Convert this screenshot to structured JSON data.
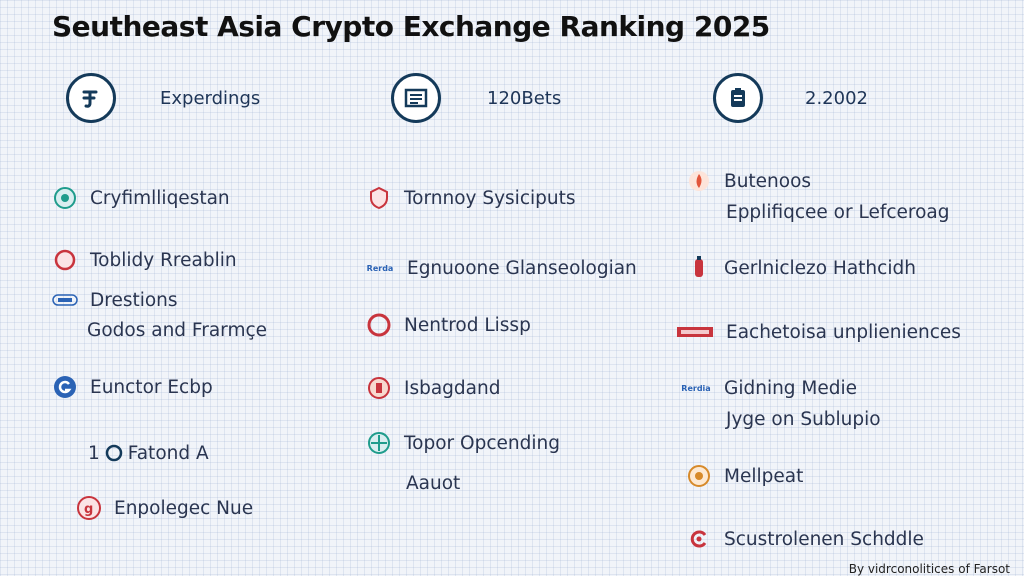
{
  "title": "Seutheast Asia Crypto Exchange Ranking 2025",
  "stats": [
    {
      "label": "Experdings",
      "icon": "currency-icon"
    },
    {
      "label": "120Bets",
      "icon": "calendar-icon"
    },
    {
      "label": "2.2002",
      "icon": "clipboard-icon"
    }
  ],
  "col1": {
    "items": [
      "Cryfimlliqestan",
      "Toblidy Rreablin",
      "Drestions",
      "Godos and Frarmçe",
      "Eunctor Ecbp",
      "Fatond A",
      "Enpolegec Nue"
    ],
    "prefix": "1"
  },
  "col2": {
    "items": [
      "Tornnoy Sysiciputs",
      "Egnuoone Glanseologian",
      "Nentrod Lissp",
      "Isbagdand",
      "Topor Opcending",
      "Aauot"
    ],
    "tag": "Rerda"
  },
  "col3": {
    "items": [
      "Butenoos",
      "Epplifiqcee or Lefceroag",
      "Gerlniclezo Hathcidh",
      "Eachetoisa unplieniences",
      "Gidning Medie",
      "Jyge on Sublupio",
      "Mellpeat",
      "Scustrolenen Schddle"
    ],
    "tag": "Rerdia"
  },
  "credit": "By vidrconolitices of Farsot",
  "colors": {
    "navy": "#143a5a",
    "red": "#c8343d",
    "blue": "#2b63b5",
    "teal": "#1f9c8c"
  }
}
